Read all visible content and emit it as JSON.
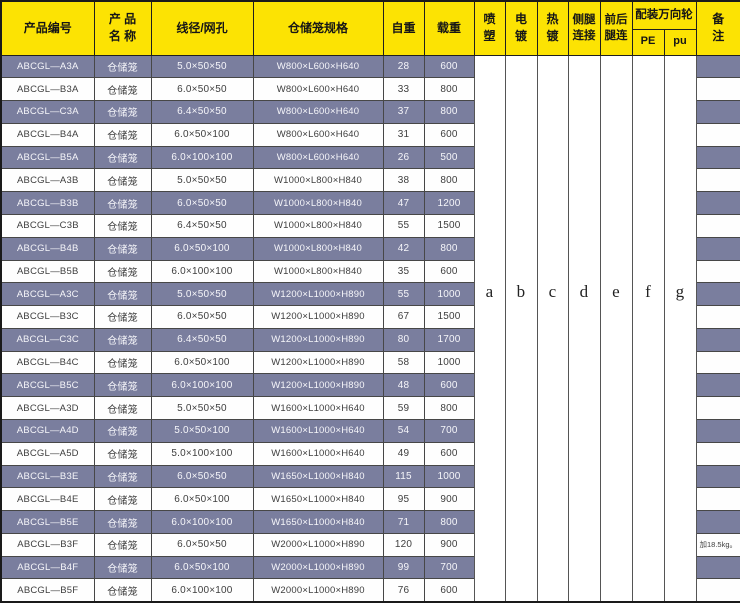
{
  "colors": {
    "header_bg": "#fce303",
    "row_dark_bg": "#7a7e9e",
    "row_light_bg": "#fefefe",
    "grid_line": "#474747",
    "dark_row_text": "#f6f6fa",
    "light_row_text": "#3e3e3e"
  },
  "header": {
    "product_code": "产品编号",
    "product_name": "产 品\n名 称",
    "wire_mesh": "线径/网孔",
    "cage_spec": "仓储笼规格",
    "self_weight": "自重",
    "load": "载重",
    "spray_plastic": "喷\n塑",
    "electroplate": "电\n镀",
    "hot_galvanize": "热\n镀",
    "side_leg_connect": "侧腿\n连接",
    "front_back_leg_connect": "前后\n腿连",
    "casters": "配装万向轮",
    "pe": "PE",
    "pu": "pu",
    "remark": "备\n注"
  },
  "letters": [
    "a",
    "b",
    "c",
    "d",
    "e",
    "f",
    "g"
  ],
  "rows": [
    {
      "code": "ABCGL—A3A",
      "name": "仓储笼",
      "wire": "5.0×50×50",
      "spec": "W800×L600×H640",
      "weight": "28",
      "load": "600",
      "remark": ""
    },
    {
      "code": "ABCGL—B3A",
      "name": "仓储笼",
      "wire": "6.0×50×50",
      "spec": "W800×L600×H640",
      "weight": "33",
      "load": "800",
      "remark": ""
    },
    {
      "code": "ABCGL—C3A",
      "name": "仓储笼",
      "wire": "6.4×50×50",
      "spec": "W800×L600×H640",
      "weight": "37",
      "load": "800",
      "remark": ""
    },
    {
      "code": "ABCGL—B4A",
      "name": "仓储笼",
      "wire": "6.0×50×100",
      "spec": "W800×L600×H640",
      "weight": "31",
      "load": "600",
      "remark": ""
    },
    {
      "code": "ABCGL—B5A",
      "name": "仓储笼",
      "wire": "6.0×100×100",
      "spec": "W800×L600×H640",
      "weight": "26",
      "load": "500",
      "remark": ""
    },
    {
      "code": "ABCGL—A3B",
      "name": "仓储笼",
      "wire": "5.0×50×50",
      "spec": "W1000×L800×H840",
      "weight": "38",
      "load": "800",
      "remark": ""
    },
    {
      "code": "ABCGL—B3B",
      "name": "仓储笼",
      "wire": "6.0×50×50",
      "spec": "W1000×L800×H840",
      "weight": "47",
      "load": "1200",
      "remark": ""
    },
    {
      "code": "ABCGL—C3B",
      "name": "仓储笼",
      "wire": "6.4×50×50",
      "spec": "W1000×L800×H840",
      "weight": "55",
      "load": "1500",
      "remark": ""
    },
    {
      "code": "ABCGL—B4B",
      "name": "仓储笼",
      "wire": "6.0×50×100",
      "spec": "W1000×L800×H840",
      "weight": "42",
      "load": "800",
      "remark": ""
    },
    {
      "code": "ABCGL—B5B",
      "name": "仓储笼",
      "wire": "6.0×100×100",
      "spec": "W1000×L800×H840",
      "weight": "35",
      "load": "600",
      "remark": ""
    },
    {
      "code": "ABCGL—A3C",
      "name": "仓储笼",
      "wire": "5.0×50×50",
      "spec": "W1200×L1000×H890",
      "weight": "55",
      "load": "1000",
      "remark": ""
    },
    {
      "code": "ABCGL—B3C",
      "name": "仓储笼",
      "wire": "6.0×50×50",
      "spec": "W1200×L1000×H890",
      "weight": "67",
      "load": "1500",
      "remark": ""
    },
    {
      "code": "ABCGL—C3C",
      "name": "仓储笼",
      "wire": "6.4×50×50",
      "spec": "W1200×L1000×H890",
      "weight": "80",
      "load": "1700",
      "remark": ""
    },
    {
      "code": "ABCGL—B4C",
      "name": "仓储笼",
      "wire": "6.0×50×100",
      "spec": "W1200×L1000×H890",
      "weight": "58",
      "load": "1000",
      "remark": ""
    },
    {
      "code": "ABCGL—B5C",
      "name": "仓储笼",
      "wire": "6.0×100×100",
      "spec": "W1200×L1000×H890",
      "weight": "48",
      "load": "600",
      "remark": ""
    },
    {
      "code": "ABCGL—A3D",
      "name": "仓储笼",
      "wire": "5.0×50×50",
      "spec": "W1600×L1000×H640",
      "weight": "59",
      "load": "800",
      "remark": ""
    },
    {
      "code": "ABCGL—A4D",
      "name": "仓储笼",
      "wire": "5.0×50×100",
      "spec": "W1600×L1000×H640",
      "weight": "54",
      "load": "700",
      "remark": ""
    },
    {
      "code": "ABCGL—A5D",
      "name": "仓储笼",
      "wire": "5.0×100×100",
      "spec": "W1600×L1000×H640",
      "weight": "49",
      "load": "600",
      "remark": ""
    },
    {
      "code": "ABCGL—B3E",
      "name": "仓储笼",
      "wire": "6.0×50×50",
      "spec": "W1650×L1000×H840",
      "weight": "115",
      "load": "1000",
      "remark": ""
    },
    {
      "code": "ABCGL—B4E",
      "name": "仓储笼",
      "wire": "6.0×50×100",
      "spec": "W1650×L1000×H840",
      "weight": "95",
      "load": "900",
      "remark": ""
    },
    {
      "code": "ABCGL—B5E",
      "name": "仓储笼",
      "wire": "6.0×100×100",
      "spec": "W1650×L1000×H840",
      "weight": "71",
      "load": "800",
      "remark": ""
    },
    {
      "code": "ABCGL—B3F",
      "name": "仓储笼",
      "wire": "6.0×50×50",
      "spec": "W2000×L1000×H890",
      "weight": "120",
      "load": "900",
      "remark": "加18.5kg。"
    },
    {
      "code": "ABCGL—B4F",
      "name": "仓储笼",
      "wire": "6.0×50×100",
      "spec": "W2000×L1000×H890",
      "weight": "99",
      "load": "700",
      "remark": ""
    },
    {
      "code": "ABCGL—B5F",
      "name": "仓储笼",
      "wire": "6.0×100×100",
      "spec": "W2000×L1000×H890",
      "weight": "76",
      "load": "600",
      "remark": ""
    }
  ]
}
